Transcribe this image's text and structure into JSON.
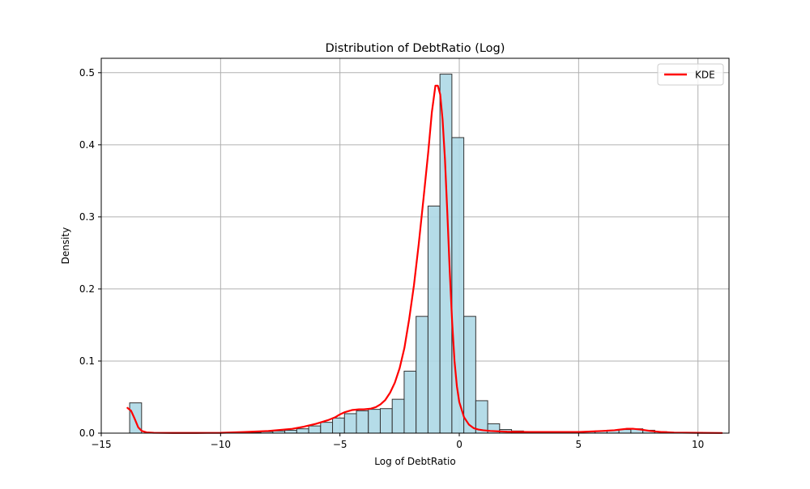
{
  "chart_data": {
    "type": "bar",
    "title": "Distribution of DebtRatio (Log)",
    "xlabel": "Log of DebtRatio",
    "ylabel": "Density",
    "xlim": [
      -15,
      11.3
    ],
    "ylim": [
      0,
      0.52
    ],
    "grid": true,
    "legend_position": "top-right",
    "x_ticks": [
      -15,
      -10,
      -5,
      0,
      5,
      10
    ],
    "x_tick_labels": [
      "−15",
      "−10",
      "−5",
      "0",
      "5",
      "10"
    ],
    "y_ticks": [
      0.0,
      0.1,
      0.2,
      0.3,
      0.4,
      0.5
    ],
    "y_tick_labels": [
      "0.0",
      "0.1",
      "0.2",
      "0.3",
      "0.4",
      "0.5"
    ],
    "histogram": {
      "name": "histogram",
      "bins": [
        {
          "start": -13.81,
          "end": -13.31,
          "value": 0.042
        },
        {
          "start": -9.31,
          "end": -8.81,
          "value": 0.001
        },
        {
          "start": -8.81,
          "end": -8.31,
          "value": 0.001
        },
        {
          "start": -8.31,
          "end": -7.81,
          "value": 0.002
        },
        {
          "start": -7.81,
          "end": -7.31,
          "value": 0.003
        },
        {
          "start": -7.31,
          "end": -6.81,
          "value": 0.004
        },
        {
          "start": -6.81,
          "end": -6.31,
          "value": 0.006
        },
        {
          "start": -6.31,
          "end": -5.81,
          "value": 0.01
        },
        {
          "start": -5.81,
          "end": -5.31,
          "value": 0.015
        },
        {
          "start": -5.31,
          "end": -4.81,
          "value": 0.021
        },
        {
          "start": -4.81,
          "end": -4.31,
          "value": 0.027
        },
        {
          "start": -4.31,
          "end": -3.81,
          "value": 0.031
        },
        {
          "start": -3.81,
          "end": -3.31,
          "value": 0.033
        },
        {
          "start": -3.31,
          "end": -2.81,
          "value": 0.034
        },
        {
          "start": -2.81,
          "end": -2.31,
          "value": 0.047
        },
        {
          "start": -2.31,
          "end": -1.81,
          "value": 0.086
        },
        {
          "start": -1.81,
          "end": -1.31,
          "value": 0.162
        },
        {
          "start": -1.31,
          "end": -0.81,
          "value": 0.315
        },
        {
          "start": -0.81,
          "end": -0.31,
          "value": 0.498
        },
        {
          "start": -0.31,
          "end": 0.19,
          "value": 0.41
        },
        {
          "start": 0.19,
          "end": 0.69,
          "value": 0.162
        },
        {
          "start": 0.69,
          "end": 1.19,
          "value": 0.045
        },
        {
          "start": 1.19,
          "end": 1.69,
          "value": 0.013
        },
        {
          "start": 1.69,
          "end": 2.19,
          "value": 0.005
        },
        {
          "start": 2.19,
          "end": 2.69,
          "value": 0.003
        },
        {
          "start": 2.69,
          "end": 3.19,
          "value": 0.002
        },
        {
          "start": 3.19,
          "end": 3.69,
          "value": 0.002
        },
        {
          "start": 3.69,
          "end": 4.19,
          "value": 0.002
        },
        {
          "start": 4.19,
          "end": 4.69,
          "value": 0.002
        },
        {
          "start": 4.69,
          "end": 5.19,
          "value": 0.002
        },
        {
          "start": 5.19,
          "end": 5.69,
          "value": 0.002
        },
        {
          "start": 5.69,
          "end": 6.19,
          "value": 0.003
        },
        {
          "start": 6.19,
          "end": 6.69,
          "value": 0.004
        },
        {
          "start": 6.69,
          "end": 7.19,
          "value": 0.005
        },
        {
          "start": 7.19,
          "end": 7.69,
          "value": 0.006
        },
        {
          "start": 7.69,
          "end": 8.19,
          "value": 0.004
        },
        {
          "start": 8.19,
          "end": 8.69,
          "value": 0.002
        },
        {
          "start": 8.69,
          "end": 9.19,
          "value": 0.001
        },
        {
          "start": 9.19,
          "end": 9.69,
          "value": 0.001
        },
        {
          "start": 9.69,
          "end": 10.19,
          "value": 0.001
        }
      ]
    },
    "kde": {
      "name": "KDE",
      "x": [
        -13.9,
        -13.75,
        -13.6,
        -13.45,
        -13.3,
        -13.1,
        -12.8,
        -12.0,
        -11.0,
        -10.0,
        -9.0,
        -8.0,
        -7.0,
        -6.5,
        -6.0,
        -5.5,
        -5.2,
        -5.0,
        -4.8,
        -4.5,
        -4.2,
        -4.0,
        -3.7,
        -3.5,
        -3.3,
        -3.1,
        -2.9,
        -2.7,
        -2.5,
        -2.3,
        -2.1,
        -1.9,
        -1.7,
        -1.5,
        -1.3,
        -1.15,
        -1.0,
        -0.9,
        -0.8,
        -0.7,
        -0.6,
        -0.5,
        -0.4,
        -0.3,
        -0.2,
        -0.1,
        0.0,
        0.2,
        0.4,
        0.6,
        0.8,
        1.0,
        1.3,
        1.6,
        2.0,
        3.0,
        4.0,
        5.0,
        6.0,
        6.5,
        7.0,
        7.3,
        7.6,
        8.0,
        8.5,
        9.0,
        10.0,
        11.0
      ],
      "y": [
        0.035,
        0.031,
        0.02,
        0.008,
        0.003,
        0.001,
        0.0005,
        0.0003,
        0.0003,
        0.0004,
        0.0015,
        0.003,
        0.006,
        0.009,
        0.013,
        0.018,
        0.022,
        0.026,
        0.029,
        0.032,
        0.033,
        0.033,
        0.034,
        0.036,
        0.04,
        0.046,
        0.056,
        0.07,
        0.09,
        0.118,
        0.158,
        0.205,
        0.262,
        0.325,
        0.39,
        0.445,
        0.482,
        0.482,
        0.47,
        0.435,
        0.38,
        0.305,
        0.225,
        0.155,
        0.1,
        0.065,
        0.043,
        0.022,
        0.012,
        0.007,
        0.005,
        0.004,
        0.003,
        0.0025,
        0.002,
        0.0015,
        0.0015,
        0.0015,
        0.003,
        0.004,
        0.006,
        0.006,
        0.005,
        0.003,
        0.0015,
        0.0008,
        0.0004,
        0.0002
      ]
    },
    "colors": {
      "bar_fill": "#add8e6",
      "bar_edge": "#333333",
      "kde_line": "#ff0000",
      "grid": "#b0b0b0"
    }
  }
}
